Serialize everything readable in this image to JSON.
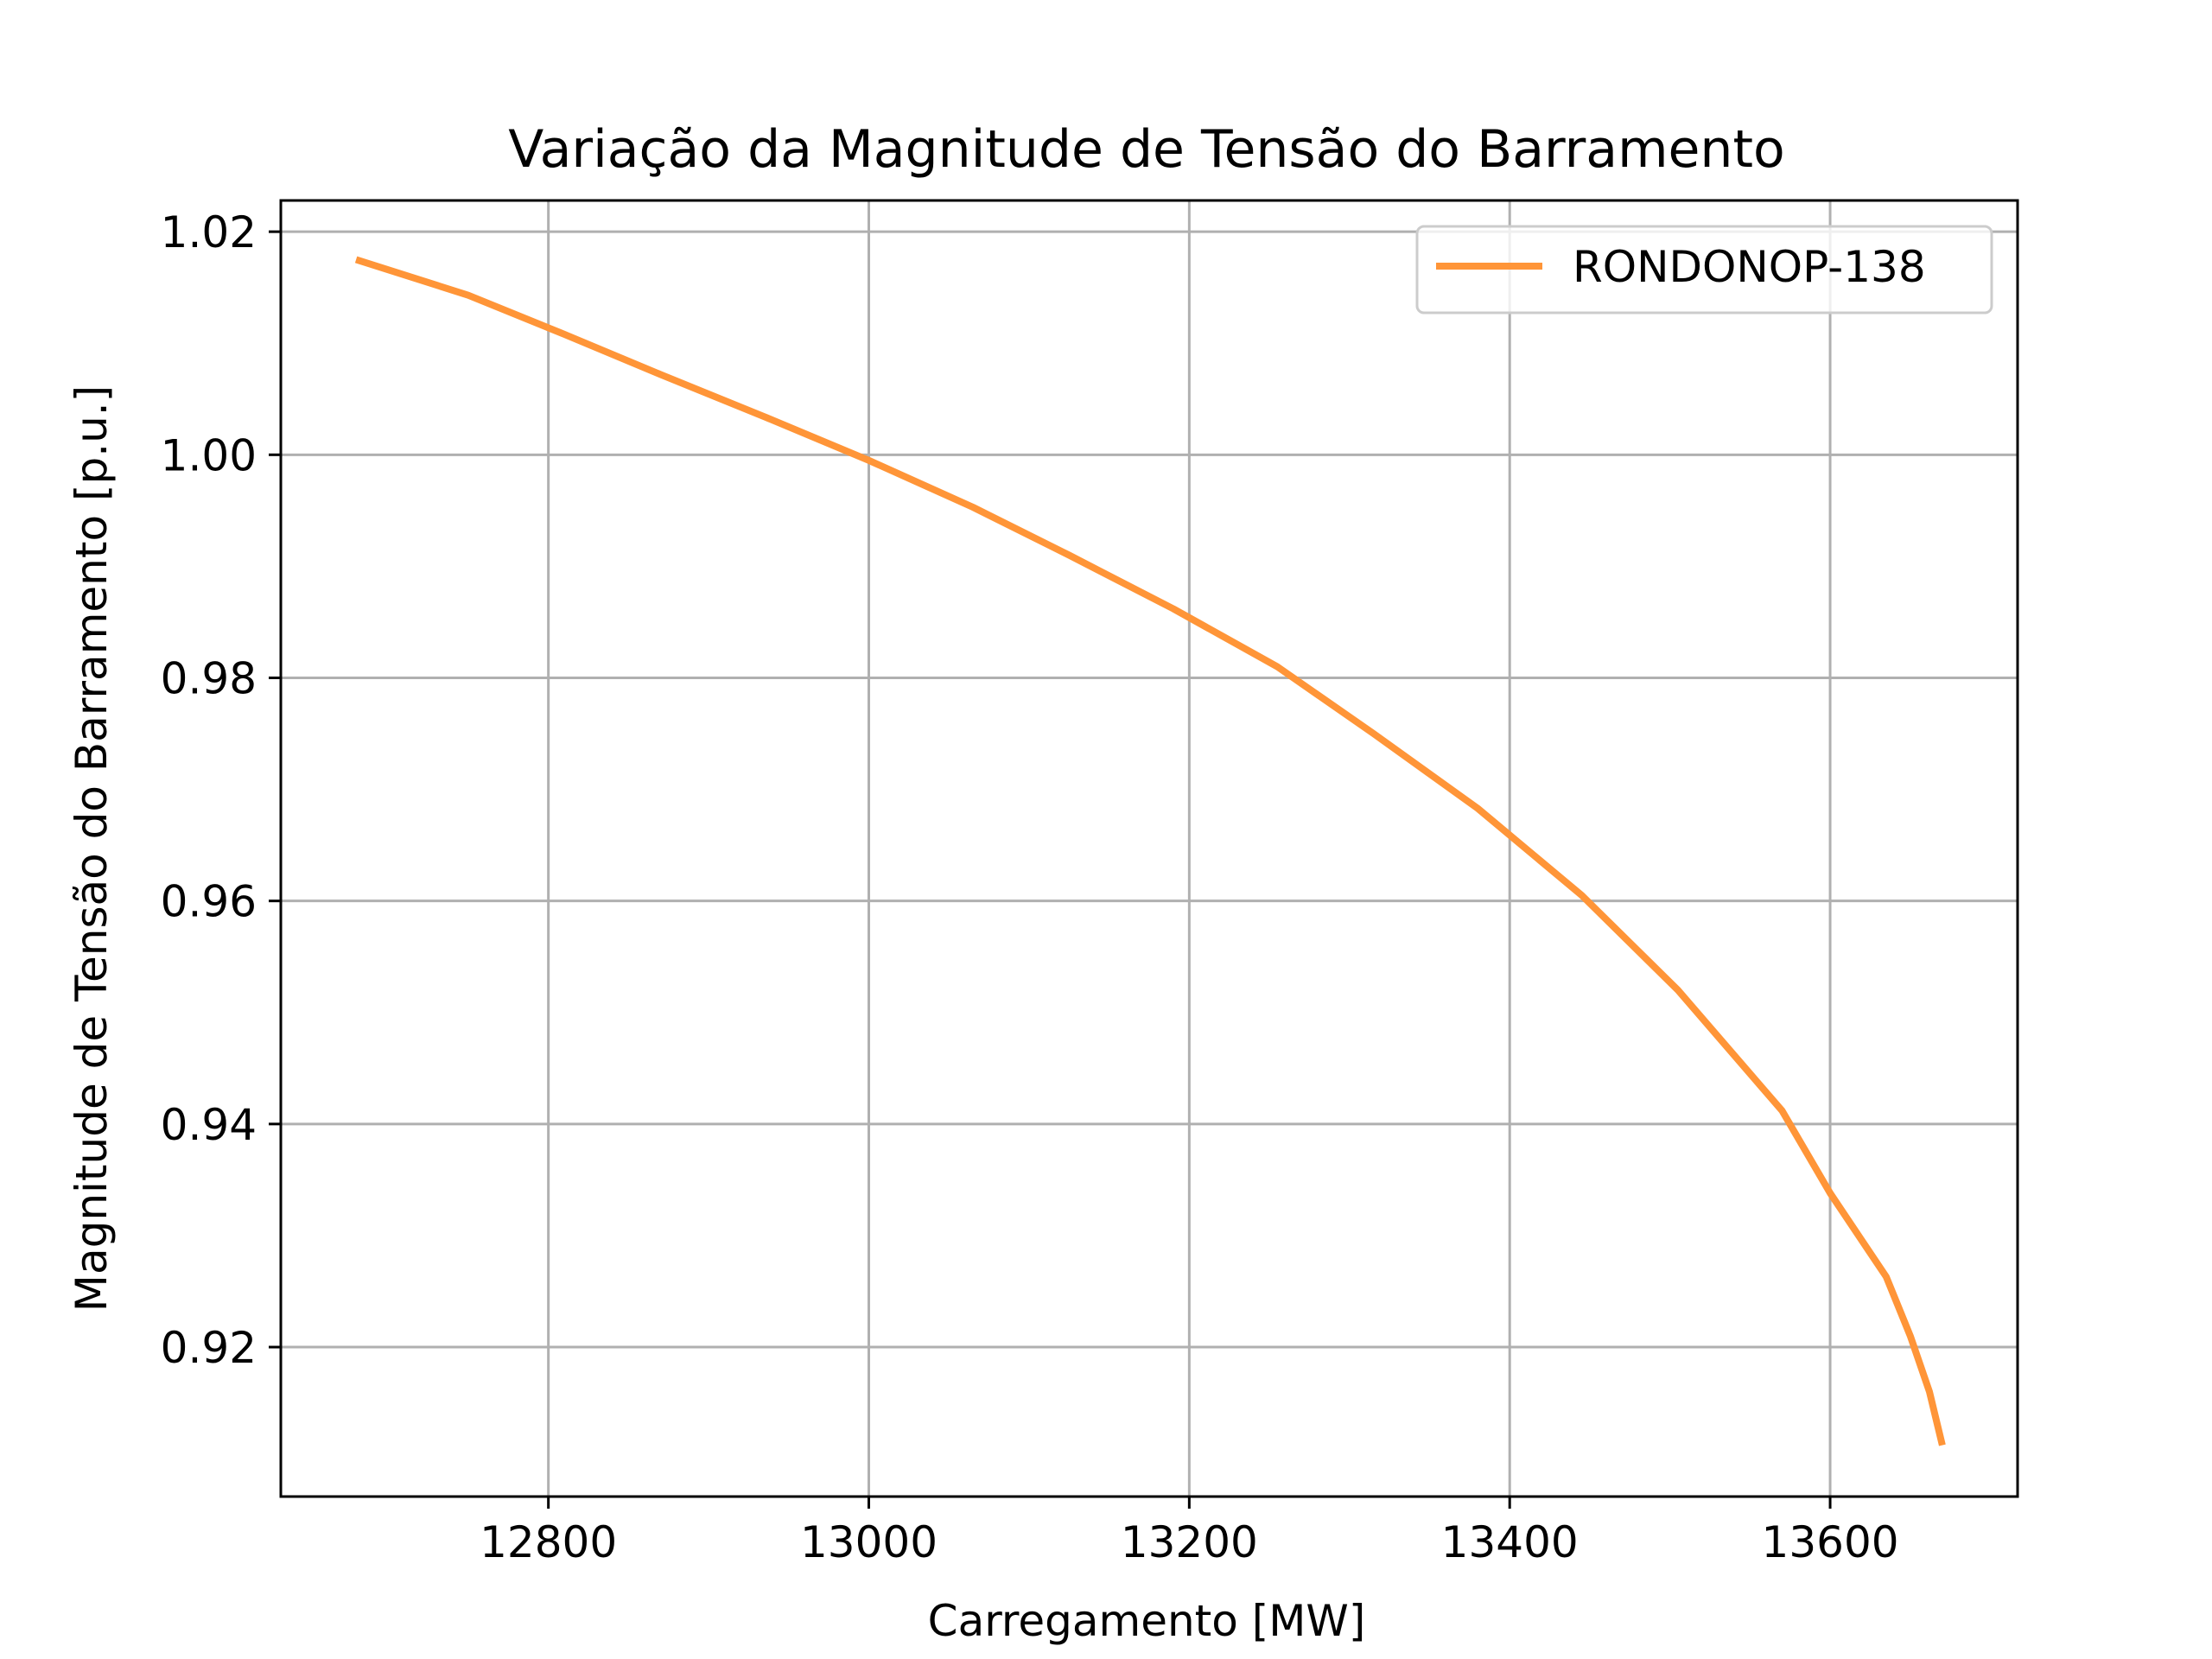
{
  "chart_data": {
    "type": "line",
    "title": "Variação da Magnitude de Tensão do Barramento",
    "xlabel": "Carregamento [MW]",
    "ylabel": "Magnitude de Tensão do Barramento [p.u.]",
    "xlim": [
      12633,
      13717
    ],
    "ylim": [
      0.9066,
      1.0228
    ],
    "x_ticks": [
      12800,
      13000,
      13200,
      13400,
      13600
    ],
    "x_tick_labels": [
      "12800",
      "13000",
      "13200",
      "13400",
      "13600"
    ],
    "y_ticks": [
      0.92,
      0.94,
      0.96,
      0.98,
      1.0,
      1.02
    ],
    "y_tick_labels": [
      "0.92",
      "0.94",
      "0.96",
      "0.98",
      "1.00",
      "1.02"
    ],
    "grid": true,
    "legend_position": "top-right",
    "series": [
      {
        "name": "RONDONOP-138",
        "color": "#ff9538",
        "x": [
          12680,
          12750,
          12810,
          12870,
          12935,
          13000,
          13065,
          13125,
          13190,
          13255,
          13315,
          13380,
          13445,
          13505,
          13570,
          13600,
          13635,
          13650,
          13662,
          13670
        ],
        "y": [
          1.0175,
          1.0143,
          1.0108,
          1.0072,
          1.0034,
          0.9995,
          0.9953,
          0.991,
          0.9862,
          0.981,
          0.975,
          0.9683,
          0.9605,
          0.952,
          0.9412,
          0.9338,
          0.9263,
          0.921,
          0.916,
          0.9112
        ]
      }
    ]
  }
}
